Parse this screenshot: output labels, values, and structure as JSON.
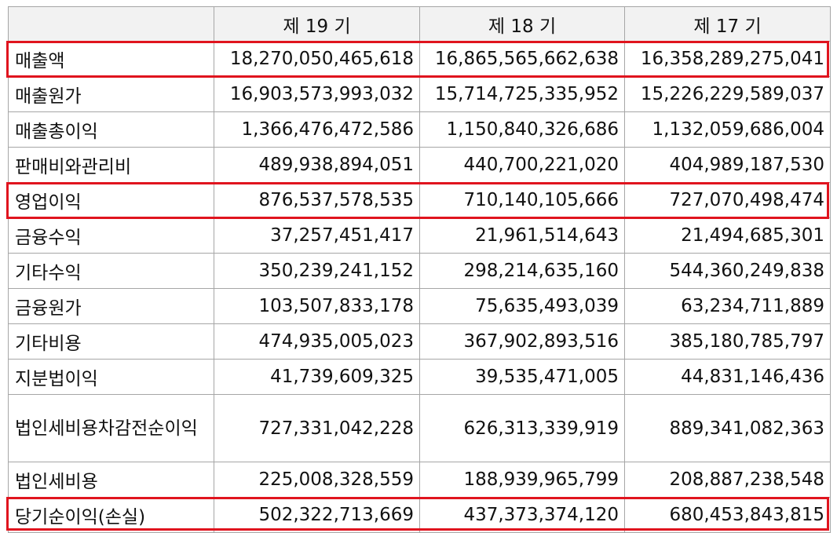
{
  "table": {
    "corner": "",
    "columns": [
      "제 19 기",
      "제 18 기",
      "제 17 기"
    ],
    "rows": [
      {
        "label": "매출액",
        "values": [
          "18,270,050,465,618",
          "16,865,565,662,638",
          "16,358,289,275,041"
        ],
        "highlight": true
      },
      {
        "label": "매출원가",
        "values": [
          "16,903,573,993,032",
          "15,714,725,335,952",
          "15,226,229,589,037"
        ],
        "highlight": false
      },
      {
        "label": "매출총이익",
        "values": [
          "1,366,476,472,586",
          "1,150,840,326,686",
          "1,132,059,686,004"
        ],
        "highlight": false
      },
      {
        "label": "판매비와관리비",
        "values": [
          "489,938,894,051",
          "440,700,221,020",
          "404,989,187,530"
        ],
        "highlight": false
      },
      {
        "label": "영업이익",
        "values": [
          "876,537,578,535",
          "710,140,105,666",
          "727,070,498,474"
        ],
        "highlight": true
      },
      {
        "label": "금융수익",
        "values": [
          "37,257,451,417",
          "21,961,514,643",
          "21,494,685,301"
        ],
        "highlight": false
      },
      {
        "label": "기타수익",
        "values": [
          "350,239,241,152",
          "298,214,635,160",
          "544,360,249,838"
        ],
        "highlight": false
      },
      {
        "label": "금융원가",
        "values": [
          "103,507,833,178",
          "75,635,493,039",
          "63,234,711,889"
        ],
        "highlight": false
      },
      {
        "label": "기타비용",
        "values": [
          "474,935,005,023",
          "367,902,893,516",
          "385,180,785,797"
        ],
        "highlight": false
      },
      {
        "label": "지분법이익",
        "values": [
          "41,739,609,325",
          "39,535,471,005",
          "44,831,146,436"
        ],
        "highlight": false
      },
      {
        "label": "법인세비용차감전순이익",
        "values": [
          "727,331,042,228",
          "626,313,339,919",
          "889,341,082,363"
        ],
        "highlight": false
      },
      {
        "label": "법인세비용",
        "values": [
          "225,008,328,559",
          "188,939,965,799",
          "208,887,238,548"
        ],
        "highlight": false
      },
      {
        "label": "당기순이익(손실)",
        "values": [
          "502,322,713,669",
          "437,373,374,120",
          "680,453,843,815"
        ],
        "highlight": true
      }
    ]
  },
  "colors": {
    "highlight_border": "#e0141e",
    "header_bg": "#f2f2f2",
    "grid": "#a6a6a6"
  }
}
